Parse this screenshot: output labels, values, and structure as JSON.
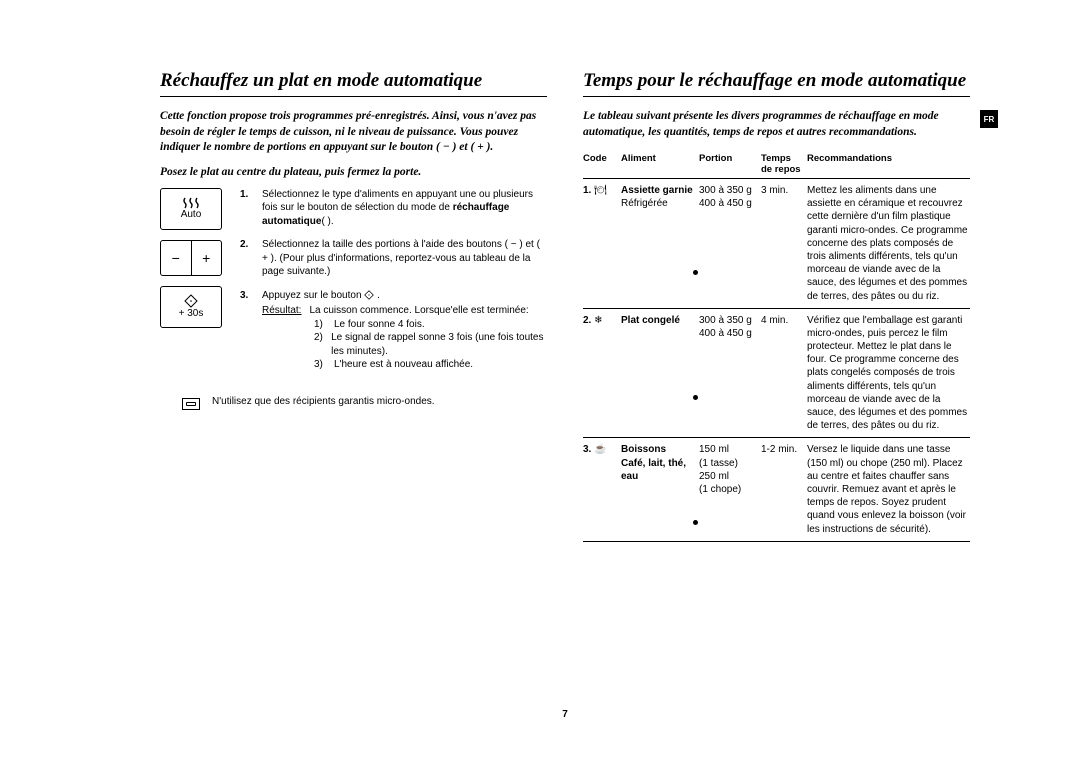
{
  "page_number": "7",
  "lang_tab": "FR",
  "left": {
    "title": "Réchauffez un plat en mode automatique",
    "intro": "Cette fonction propose trois programmes pré-enregistrés. Ainsi, vous n'avez pas besoin de régler le temps de cuisson, ni le niveau de puissance. Vous pouvez indiquer le nombre de portions en appuyant sur le bouton ( − ) et ( + ).",
    "sub": "Posez le plat au centre du plateau, puis fermez la porte.",
    "btn_auto_label": "Auto",
    "btn_minus": "−",
    "btn_plus": "+",
    "btn_30s": "+ 30s",
    "steps": [
      {
        "n": "1.",
        "text_a": "Sélectionnez le type d'aliments en appuyant une ou plusieurs fois sur le bouton de sélection du mode de ",
        "bold": "réchauffage automatique",
        "text_b": "( ).",
        "icon_after_bold": true
      },
      {
        "n": "2.",
        "text_a": "Sélectionnez la taille des portions à l'aide des boutons ( − ) et ( + ). (Pour plus d'informations, reportez-vous au tableau de la page suivante.)"
      },
      {
        "n": "3.",
        "text_a": "Appuyez sur le bouton ",
        "diamond": true,
        "text_b": " .",
        "result_label": "Résultat:",
        "result_text": "La cuisson commence. Lorsque'elle est terminée:",
        "subitems": [
          {
            "n": "1)",
            "t": "Le four sonne 4 fois."
          },
          {
            "n": "2)",
            "t": "Le signal de rappel sonne 3 fois (une fois toutes les minutes)."
          },
          {
            "n": "3)",
            "t": "L'heure est à nouveau affichée."
          }
        ]
      }
    ],
    "note": "N'utilisez que des récipients garantis micro-ondes."
  },
  "right": {
    "title": "Temps pour le réchauffage en mode automatique",
    "intro": "Le tableau suivant présente les divers programmes de réchauffage en mode automatique, les quantités, temps de repos et autres recommandations.",
    "headers": {
      "code": "Code",
      "aliment": "Aliment",
      "portion": "Portion",
      "temps": "Temps de repos",
      "reco": "Recommandations"
    },
    "rows": [
      {
        "code": "1.",
        "icon": "🍽",
        "aliment_bold": "Assiette garnie",
        "aliment_rest": "Réfrigérée",
        "portion": "300 à 350 g\n400 à 450 g",
        "temps": "3 min.",
        "reco": "Mettez les aliments dans une assiette en céramique et recouvrez cette dernière d'un film plastique garanti micro-ondes. Ce programme concerne des plats composés de trois aliments différents, tels qu'un morceau de viande avec de la sauce, des légumes et des pommes de terres, des pâtes ou du riz."
      },
      {
        "code": "2.",
        "icon": "❄",
        "aliment_bold": "Plat congelé",
        "aliment_rest": "",
        "portion": "300 à 350 g\n400 à 450 g",
        "temps": "4 min.",
        "reco": "Vérifiez que l'emballage est garanti micro-ondes, puis percez le film protecteur. Mettez le plat dans le four. Ce programme concerne des plats congelés composés de trois aliments différents, tels qu'un morceau de viande avec de la sauce, des légumes et des pommes de terres, des pâtes ou du riz."
      },
      {
        "code": "3.",
        "icon": "☕",
        "aliment_bold": "Boissons",
        "aliment_bold2": "Café, lait, thé, eau",
        "aliment_rest": "",
        "portion": "150 ml\n(1 tasse)\n250 ml\n(1 chope)",
        "temps": "1-2 min.",
        "reco": "Versez le liquide dans une tasse (150 ml) ou chope (250 ml). Placez au centre et faites chauffer sans couvrir. Remuez avant et après le temps de repos. Soyez prudent quand vous enlevez la boisson (voir les instructions de sécurité)."
      }
    ]
  }
}
